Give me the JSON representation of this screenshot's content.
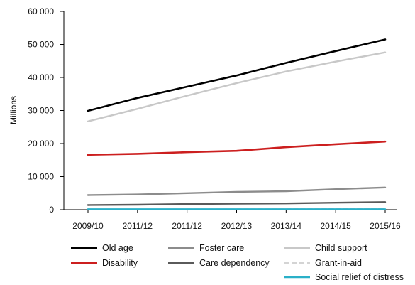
{
  "chart_data": {
    "type": "line",
    "title": "",
    "xlabel": "",
    "ylabel": "Millions",
    "ylim": [
      0,
      60000
    ],
    "yticks": [
      0,
      10000,
      20000,
      30000,
      40000,
      50000,
      60000
    ],
    "ytick_labels": [
      "0",
      "10 000",
      "20 000",
      "30 000",
      "40 000",
      "50 000",
      "60 000"
    ],
    "categories": [
      "2009/10",
      "2011/12",
      "2011/12",
      "2012/13",
      "2013/14",
      "2014/15",
      "2015/16"
    ],
    "grid": false,
    "legend_position": "bottom",
    "series": [
      {
        "name": "Old age",
        "color": "#000000",
        "dash": "solid",
        "values": [
          29900,
          33800,
          37200,
          40600,
          44400,
          48000,
          51500
        ]
      },
      {
        "name": "Disability",
        "color": "#cc1f1f",
        "dash": "solid",
        "values": [
          16600,
          16900,
          17400,
          17800,
          18900,
          19800,
          20600
        ]
      },
      {
        "name": "Foster care",
        "color": "#8c8c8c",
        "dash": "solid",
        "values": [
          4400,
          4600,
          5000,
          5400,
          5600,
          6200,
          6700
        ]
      },
      {
        "name": "Care dependency",
        "color": "#5a5a5a",
        "dash": "solid",
        "values": [
          1400,
          1500,
          1700,
          1800,
          1900,
          2100,
          2300
        ]
      },
      {
        "name": "Child support",
        "color": "#c8c8c8",
        "dash": "solid",
        "values": [
          26700,
          30500,
          34500,
          38300,
          41800,
          44800,
          47600
        ]
      },
      {
        "name": "Grant-in-aid",
        "color": "#d4d4d4",
        "dash": "dashed",
        "values": [
          50,
          60,
          80,
          100,
          130,
          170,
          220
        ]
      },
      {
        "name": "Social relief of distress",
        "color": "#2ab0c8",
        "dash": "solid",
        "values": [
          150,
          150,
          150,
          150,
          150,
          150,
          150
        ]
      }
    ],
    "legend_columns": [
      [
        "Old age",
        "Disability"
      ],
      [
        "Foster care",
        "Care dependency"
      ],
      [
        "Child support",
        "Grant-in-aid",
        "Social relief of distress"
      ]
    ]
  }
}
